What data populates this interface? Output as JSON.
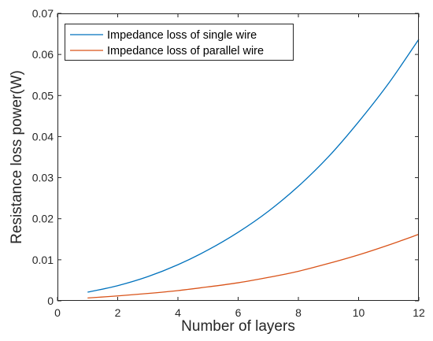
{
  "chart_data": {
    "type": "line",
    "xlabel": "Number of layers",
    "ylabel": "Resistance loss power(W)",
    "xlim": [
      0,
      12
    ],
    "ylim": [
      0,
      0.07
    ],
    "xticks": [
      0,
      2,
      4,
      6,
      8,
      10,
      12
    ],
    "xtick_labels": [
      "0",
      "2",
      "4",
      "6",
      "8",
      "10",
      "12"
    ],
    "yticks": [
      0,
      0.01,
      0.02,
      0.03,
      0.04,
      0.05,
      0.06,
      0.07
    ],
    "ytick_labels": [
      "0",
      "0.01",
      "0.02",
      "0.03",
      "0.04",
      "0.05",
      "0.06",
      "0.07"
    ],
    "grid": false,
    "legend_position": "top-left",
    "series": [
      {
        "name": "Impedance loss of single wire",
        "color": "#0072BD",
        "x": [
          1,
          2,
          3,
          4,
          5,
          6,
          7,
          8,
          9,
          10,
          11,
          12
        ],
        "y": [
          0.0021,
          0.0037,
          0.0059,
          0.0088,
          0.0124,
          0.0167,
          0.0218,
          0.0279,
          0.0351,
          0.0436,
          0.053,
          0.0637
        ]
      },
      {
        "name": "Impedance loss of parallel wire",
        "color": "#D95319",
        "x": [
          1,
          2,
          3,
          4,
          5,
          6,
          7,
          8,
          9,
          10,
          11,
          12
        ],
        "y": [
          0.0007,
          0.0012,
          0.0018,
          0.0025,
          0.0034,
          0.0044,
          0.0057,
          0.0072,
          0.0091,
          0.0112,
          0.0136,
          0.0162
        ]
      }
    ]
  }
}
